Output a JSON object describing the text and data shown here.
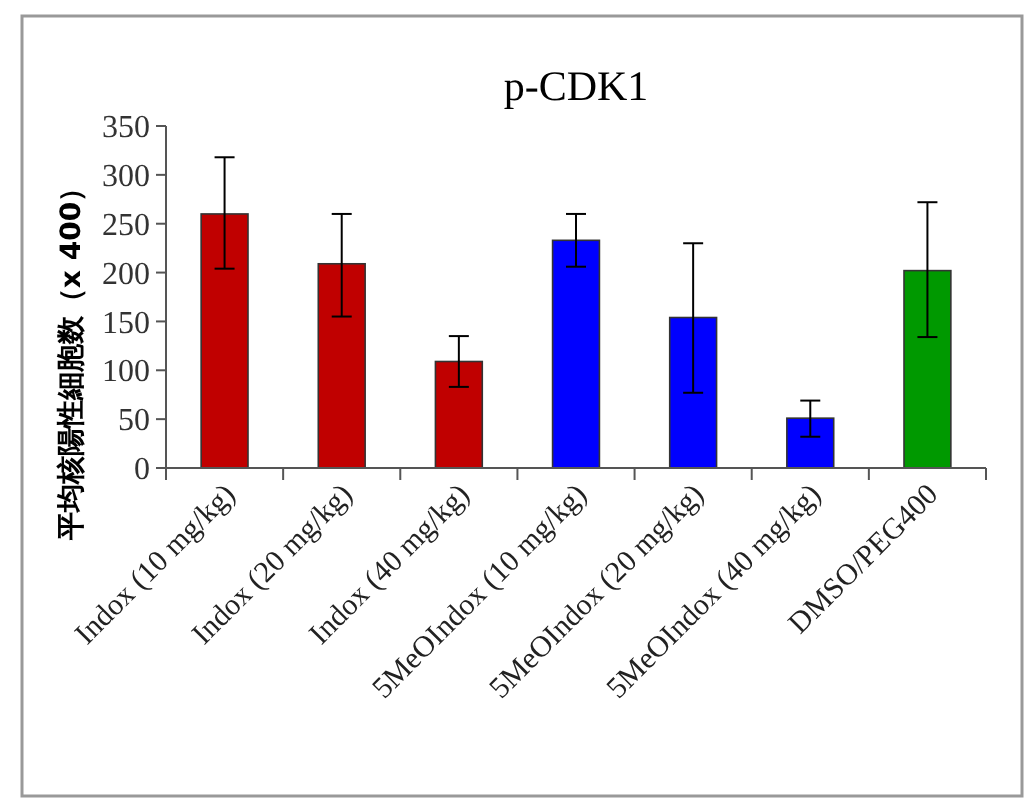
{
  "chart_data": {
    "type": "bar",
    "title": "p-CDK1",
    "ylabel": "平均核陽性細胞数（x 400）",
    "categories": [
      "Indox (10 mg/kg)",
      "Indox (20 mg/kg)",
      "Indox (40 mg/kg)",
      "5MeOIndox (10 mg/kg)",
      "5MeOIndox (20 mg/kg)",
      "5MeOIndox (40 mg/kg)",
      "DMSO/PEG400"
    ],
    "values": [
      260,
      209,
      109,
      233,
      154,
      51,
      202
    ],
    "colors": [
      "#c00000",
      "#c00000",
      "#c00000",
      "#0000ff",
      "#0000ff",
      "#0000ff",
      "#009900"
    ],
    "errors": [
      [
        204,
        318
      ],
      [
        155,
        260
      ],
      [
        83,
        135
      ],
      [
        206,
        260
      ],
      [
        77,
        230
      ],
      [
        32,
        69
      ],
      [
        134,
        272
      ]
    ],
    "ylim": [
      0,
      350
    ],
    "yticks": [
      0,
      50,
      100,
      150,
      200,
      250,
      300,
      350
    ],
    "grid": false
  }
}
